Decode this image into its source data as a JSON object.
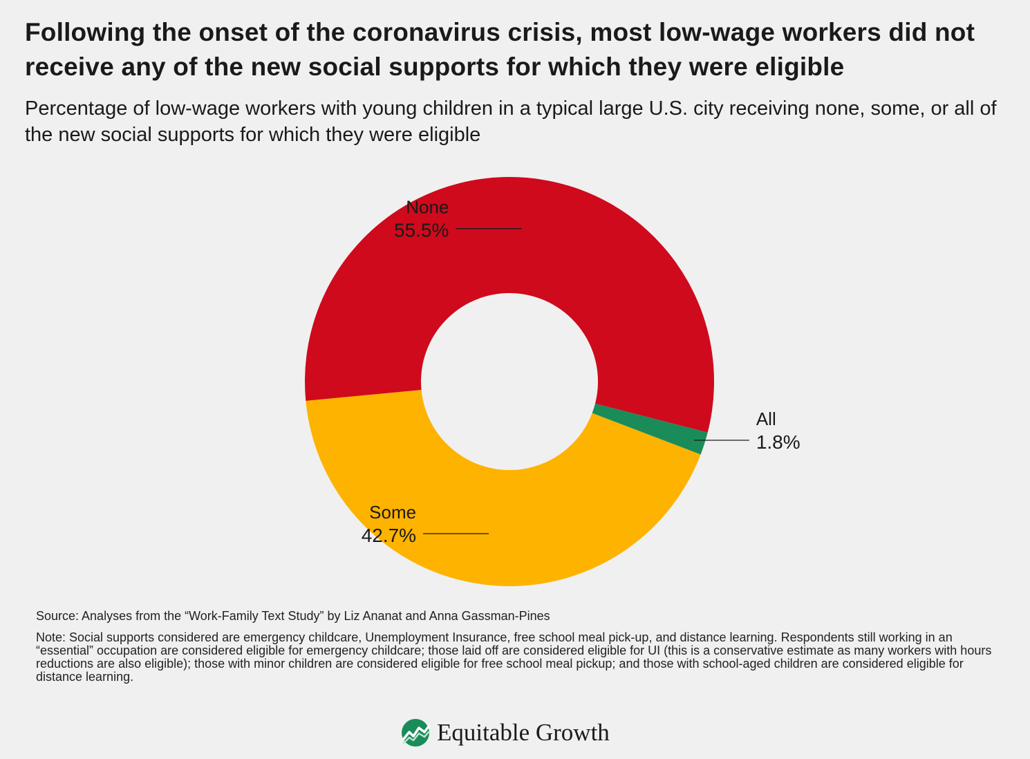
{
  "header": {
    "title": "Following the onset of the coronavirus crisis, most low-wage workers did not receive any of the new social supports for which they were eligible",
    "subtitle": "Percentage of low-wage workers with young children in a typical large U.S. city receiving none, some, or all of the new social supports for which they were eligible"
  },
  "chart_data": {
    "type": "pie",
    "variant": "donut",
    "categories": [
      "All",
      "Some",
      "None"
    ],
    "values": [
      1.8,
      42.7,
      55.5
    ],
    "value_labels": [
      "1.8%",
      "42.7%",
      "55.5%"
    ],
    "colors": [
      "#1a8c59",
      "#fdb300",
      "#cf0a1c"
    ]
  },
  "footer": {
    "source": "Source: Analyses from the “Work-Family Text Study” by Liz Ananat and Anna Gassman-Pines",
    "note": "Note: Social supports considered are emergency childcare, Unemployment Insurance, free school meal pick-up, and distance learning. Respondents still working in an “essential” occupation are considered eligible for emergency childcare; those laid off are considered eligible for UI (this is a conservative estimate as many workers with hours reductions are also eligible); those with minor children are considered eligible for free school meal pickup; and those with school-aged children are considered eligible for distance learning.",
    "brand": "Equitable Growth",
    "brand_icon": "equitable-growth-logo-icon"
  }
}
